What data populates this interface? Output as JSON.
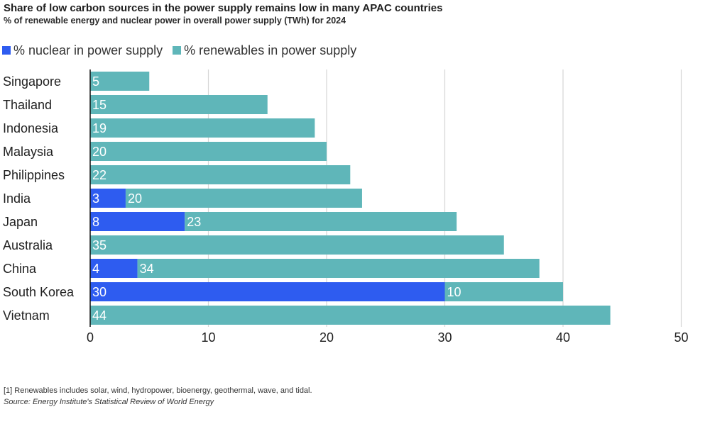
{
  "colors": {
    "nuclear": "#2e5cf0",
    "renewables": "#5fb6b9",
    "grid": "#d6d6d6",
    "axis": "#111111",
    "label": "#1f1f1f"
  },
  "footnote": "[1] Renewables includes solar, wind, hydropower, bioenergy, geothermal, wave, and tidal.",
  "source": "Source: Energy Institute's Statistical Review of World Energy",
  "chart_data": {
    "type": "bar",
    "orientation": "horizontal",
    "stacked": true,
    "title": "Share of low carbon sources in the power supply remains low in many APAC countries",
    "subtitle": "% of renewable energy and nuclear power in overall power supply (TWh) for 2024",
    "categories": [
      "Singapore",
      "Thailand",
      "Indonesia",
      "Malaysia",
      "Philippines",
      "India",
      "Japan",
      "Australia",
      "China",
      "South Korea",
      "Vietnam"
    ],
    "series": [
      {
        "name": "% nuclear in power supply",
        "values": [
          0,
          0,
          0,
          0,
          0,
          3,
          8,
          0,
          4,
          30,
          0
        ]
      },
      {
        "name": "% renewables in power supply",
        "values": [
          5,
          15,
          19,
          20,
          22,
          20,
          23,
          35,
          34,
          10,
          44
        ]
      }
    ],
    "xlim": [
      0,
      50
    ],
    "xticks": [
      0,
      10,
      20,
      30,
      40,
      50
    ],
    "xlabel": "",
    "ylabel": "",
    "grid": true,
    "legend": "top-left"
  }
}
